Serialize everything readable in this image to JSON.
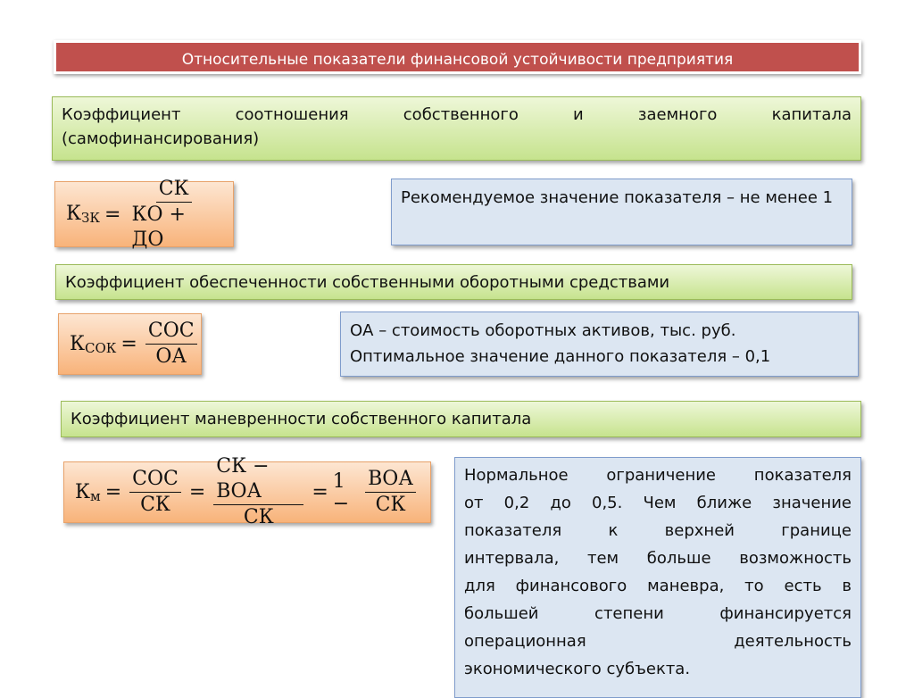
{
  "title": "Относительные показатели финансовой устойчивости предприятия",
  "section1": {
    "heading_line1": "Коэффициент соотношения собственного и заемного капитала",
    "heading_line2": "(самофинансирования)",
    "formula": {
      "lhs": "К",
      "lhs_sub": "ЗК",
      "eq": "=",
      "num": "СК",
      "den": "КО + ДО"
    },
    "note": "Рекомендуемое значение показателя – не менее 1"
  },
  "section2": {
    "heading": "Коэффициент обеспеченности собственными оборотными средствами",
    "formula": {
      "lhs": "К",
      "lhs_sub": "СОК",
      "eq": "=",
      "num": "СОС",
      "den": "ОА"
    },
    "note_line1": "ОА – стоимость оборотных активов, тыс. руб.",
    "note_line2": "Оптимальное значение данного показателя – 0,1"
  },
  "section3": {
    "heading": "Коэффициент маневренности собственного капитала",
    "formula": {
      "lhs": "К",
      "lhs_sub": "м",
      "eq": "=",
      "f1_num": "СОС",
      "f1_den": "СК",
      "f2_num": "СК − ВОА",
      "f2_den": "СК",
      "one_minus": "1 −",
      "f3_num": "ВОА",
      "f3_den": "СК"
    },
    "note_lines": [
      "Нормальное ограничение показателя",
      "от 0,2 до 0,5. Чем ближе значение",
      "показателя к верхней границе",
      "интервала, тем больше возможность",
      "для финансового маневра, то есть в",
      "большей степени финансируется",
      "операционная деятельность",
      "экономического субъекта."
    ]
  },
  "colors": {
    "title_bg": "#c0504d",
    "green_box": "#c6e38e",
    "orange_box": "#f8b37a",
    "blue_box": "#dce6f2"
  }
}
